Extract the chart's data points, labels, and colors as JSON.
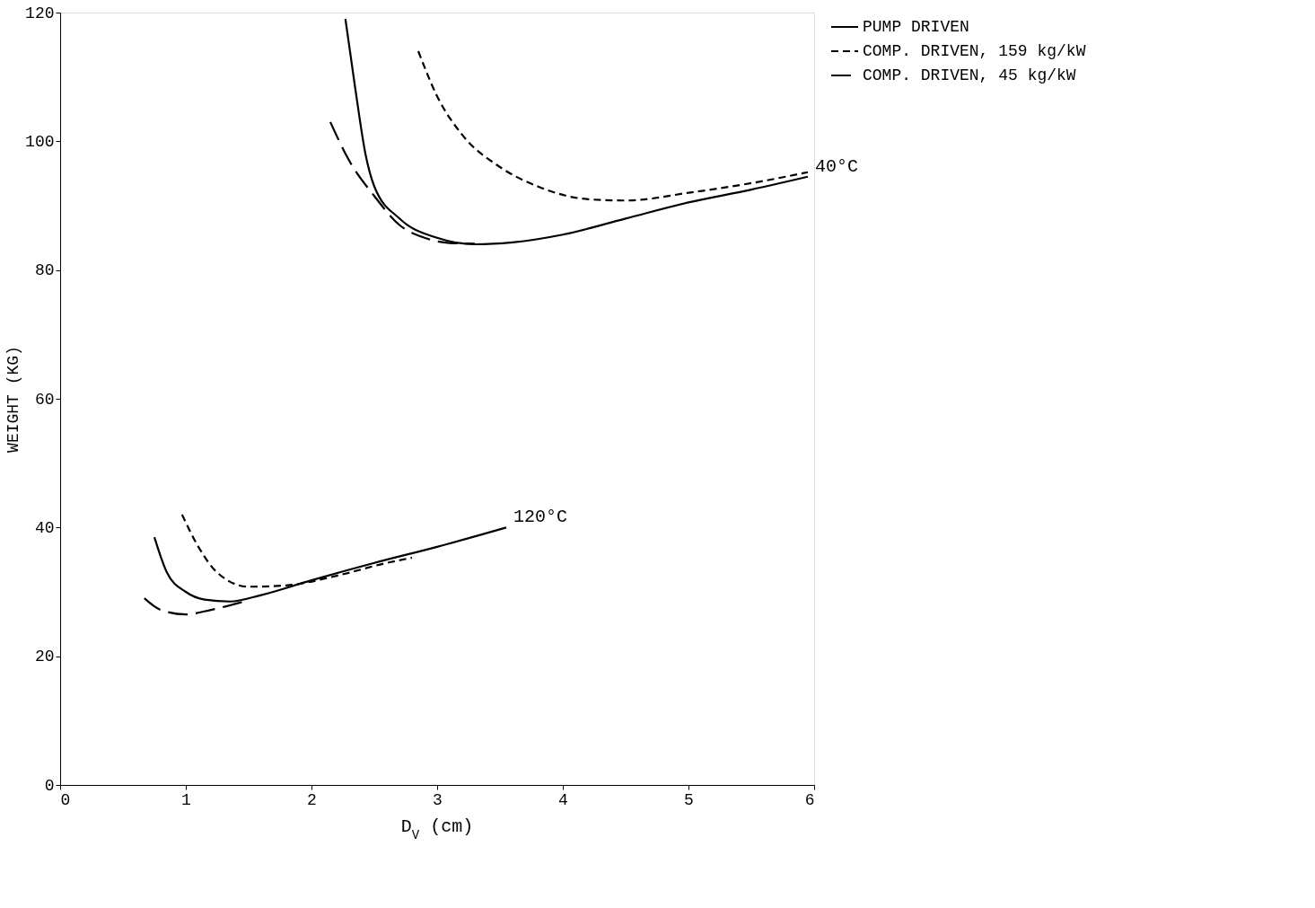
{
  "chart_data": {
    "type": "line",
    "xlabel": "D$_{V}$ (cm)",
    "ylabel": "WEIGHT (KG)",
    "xlim": [
      0,
      6
    ],
    "ylim": [
      0,
      120
    ],
    "xticks": [
      0,
      1,
      2,
      3,
      4,
      5,
      6
    ],
    "yticks": [
      0,
      20,
      40,
      60,
      80,
      100,
      120
    ],
    "grid": false,
    "legend": "right",
    "marker": "none",
    "series": [
      {
        "name": "PUMP DRIVEN",
        "color": "#000000",
        "line_style": "solid",
        "x": [
          2.27,
          2.35,
          2.43,
          2.5,
          2.7,
          3.0,
          3.3,
          3.6,
          4.0,
          4.5,
          5.0,
          5.5,
          5.95
        ],
        "values": [
          119,
          108,
          98,
          93,
          88,
          85,
          84,
          84.3,
          85.5,
          88,
          90.5,
          92.5,
          94.5
        ]
      },
      {
        "name": "COMP. DRIVEN, 159 kg/kW",
        "color": "#000000",
        "line_style": "dotted",
        "x": [
          2.85,
          3.0,
          3.2,
          3.5,
          3.8,
          4.2,
          4.5,
          5.0,
          5.5,
          5.95
        ],
        "values": [
          114,
          107,
          101,
          96,
          93,
          91,
          90.8,
          92,
          93.5,
          95.2
        ]
      },
      {
        "name": "COMP. DRIVEN, 45 kg/kW",
        "color": "#000000",
        "line_style": "dashed",
        "x": [
          2.15,
          2.3,
          2.5,
          2.7,
          2.9,
          3.1,
          3.3
        ],
        "values": [
          103,
          97,
          91.5,
          87,
          85,
          84.2,
          84.1
        ]
      },
      {
        "color": "#000000",
        "line_style": "solid",
        "x": [
          0.75,
          0.85,
          1.0,
          1.15,
          1.35,
          1.6,
          2.0,
          2.5,
          3.0,
          3.55
        ],
        "values": [
          38.5,
          33,
          30,
          28.8,
          28.5,
          29.5,
          31.8,
          34.5,
          37,
          40
        ]
      },
      {
        "color": "#000000",
        "line_style": "dotted",
        "x": [
          0.97,
          1.1,
          1.25,
          1.5,
          1.8,
          2.2,
          2.6,
          2.8
        ],
        "values": [
          42,
          37,
          33,
          30.8,
          31,
          32.5,
          34.5,
          35.3
        ]
      },
      {
        "color": "#000000",
        "line_style": "dashed",
        "x": [
          0.67,
          0.8,
          1.0,
          1.2,
          1.5
        ],
        "values": [
          29,
          27.2,
          26.5,
          27.2,
          28.7
        ]
      }
    ],
    "annotations": [
      {
        "text": "40°C",
        "x": 5.95,
        "y": 94.5
      },
      {
        "text": "120°C",
        "x": 3.55,
        "y": 40
      }
    ]
  }
}
